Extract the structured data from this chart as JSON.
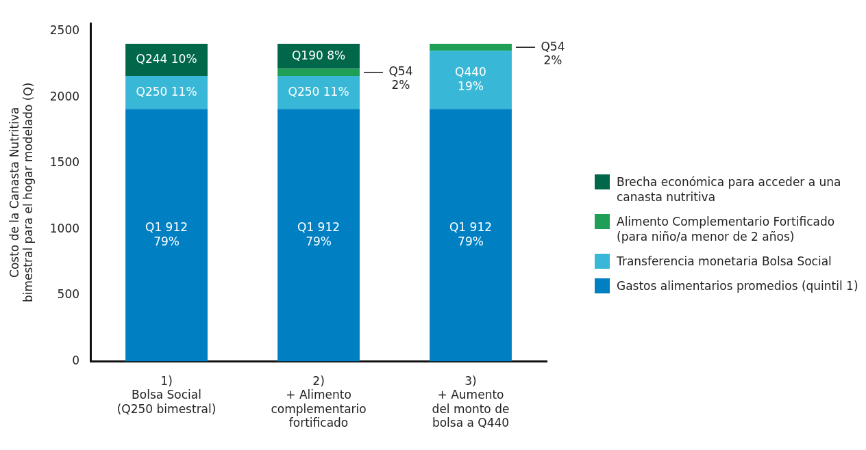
{
  "chart_data": {
    "type": "bar",
    "stacked": true,
    "ylabel": "Costo de la Canasta Nutritiva bimestral para el hogar modelado (Q)",
    "categories": [
      "1)\nBolsa Social\n(Q250 bimestral)",
      "2)\n+ Alimento\ncomplementario\nfortificado",
      "3)\n+ Aumento\ndel monto de\nbolsa a Q440"
    ],
    "series": [
      {
        "name": "Gastos alimentarios promedios (quintil 1)",
        "color": "#0080c3",
        "values": [
          1912,
          1912,
          1912
        ],
        "value_labels": [
          "Q1 912\n79%",
          "Q1 912\n79%",
          "Q1 912\n79%"
        ]
      },
      {
        "name": "Transferencia monetaria Bolsa Social",
        "color": "#38b8d6",
        "values": [
          250,
          250,
          440
        ],
        "value_labels": [
          "Q250 11%",
          "Q250 11%",
          "Q440\n19%"
        ]
      },
      {
        "name": "Alimento Complementario Fortificado (para niño/a menor de 2 años)",
        "color": "#1f9e55",
        "values": [
          null,
          54,
          54
        ],
        "value_labels": [
          null,
          "Q54\n2%",
          "Q54\n2%"
        ]
      },
      {
        "name": "Brecha económica para acceder a una canasta nutritiva",
        "color": "#00674a",
        "values": [
          244,
          190,
          null
        ],
        "value_labels": [
          "Q244 10%",
          "Q190 8%",
          null
        ]
      }
    ],
    "ylim": [
      0,
      2560
    ],
    "yticks": [
      0,
      500,
      1000,
      1500,
      2000,
      2500
    ],
    "grid": false,
    "legend": "right"
  }
}
